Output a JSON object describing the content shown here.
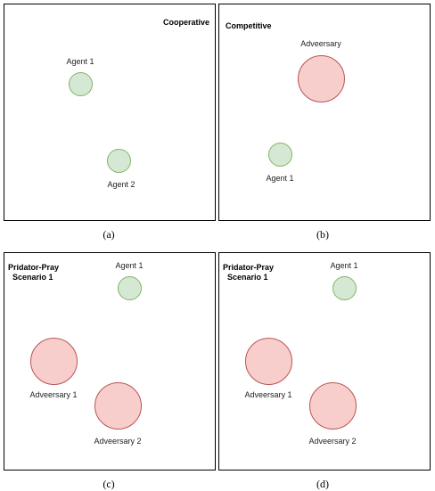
{
  "panels": {
    "a": {
      "title": "Cooperative",
      "caption": "(a)",
      "agent1": "Agent 1",
      "agent2": "Agent 2"
    },
    "b": {
      "title": "Competitive",
      "caption": "(b)",
      "adversary": "Adveersary",
      "agent1": "Agent 1"
    },
    "c": {
      "title": "Pridator-Pray\n  Scenario 1",
      "caption": "(c)",
      "agent1": "Agent 1",
      "adversary1": "Adveersary 1",
      "adversary2": "Adveersary 2"
    },
    "d": {
      "title": "Pridator-Pray\n  Scenario 1",
      "caption": "(d)",
      "agent1": "Agent 1",
      "adversary1": "Adveersary 1",
      "adversary2": "Adveersary 2"
    }
  },
  "colors": {
    "agent_fill": "#d5e8d4",
    "agent_stroke": "#82b366",
    "adversary_fill": "#f8cecc",
    "adversary_stroke": "#b85450"
  }
}
